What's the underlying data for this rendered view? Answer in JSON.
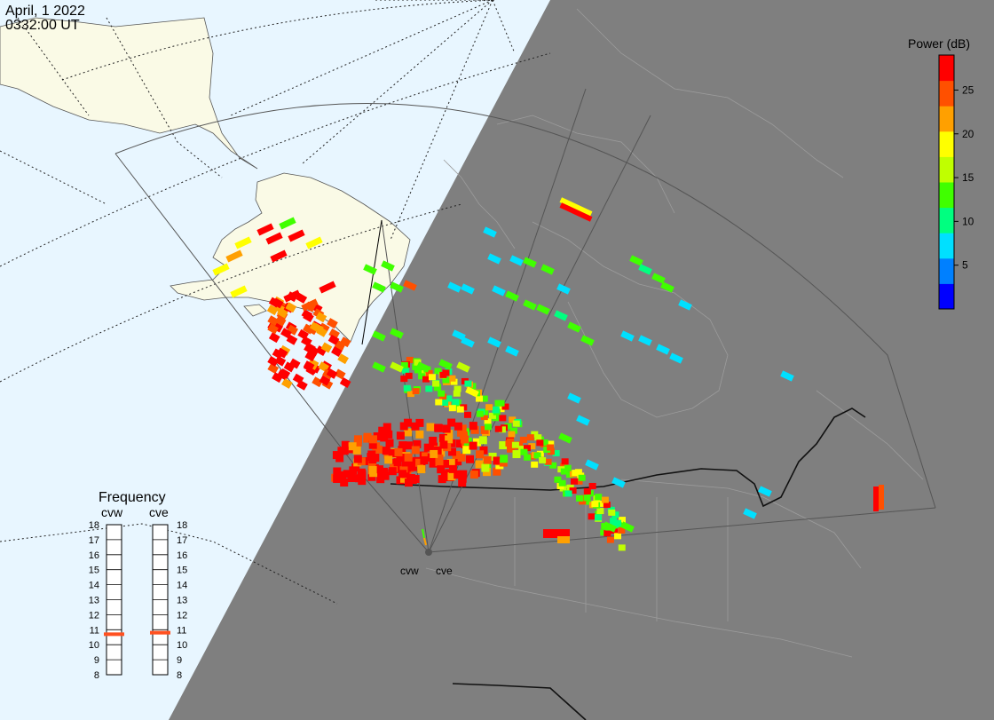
{
  "header": {
    "date": "April, 1 2022",
    "time": "0332:00 UT"
  },
  "colorbar": {
    "title": "Power (dB)",
    "ticks": [
      "25",
      "20",
      "15",
      "10",
      "5"
    ],
    "tick_values": [
      25,
      20,
      15,
      10,
      5
    ],
    "range": [
      0,
      29
    ],
    "colors": [
      "#0000ff",
      "#0080ff",
      "#00e0ff",
      "#00ff80",
      "#40ff00",
      "#c0ff00",
      "#ffff00",
      "#ffa000",
      "#ff5000",
      "#ff0000"
    ]
  },
  "frequency_panel": {
    "title": "Frequency",
    "columns": [
      {
        "label": "cvw",
        "value_mhz": 10.7
      },
      {
        "label": "cve",
        "value_mhz": 10.8
      }
    ],
    "ticks": [
      "18",
      "17",
      "16",
      "15",
      "14",
      "13",
      "12",
      "11",
      "10",
      "9",
      "8"
    ],
    "range": [
      8,
      18
    ],
    "marker_color": "#ff5020"
  },
  "radar_sites": [
    {
      "label": "cvw"
    },
    {
      "label": "cve"
    }
  ],
  "colors": {
    "ocean": "#e8f6ff",
    "land": "#fafae6",
    "night": "#7f7f7f",
    "night_border": "#a8a8a8"
  }
}
